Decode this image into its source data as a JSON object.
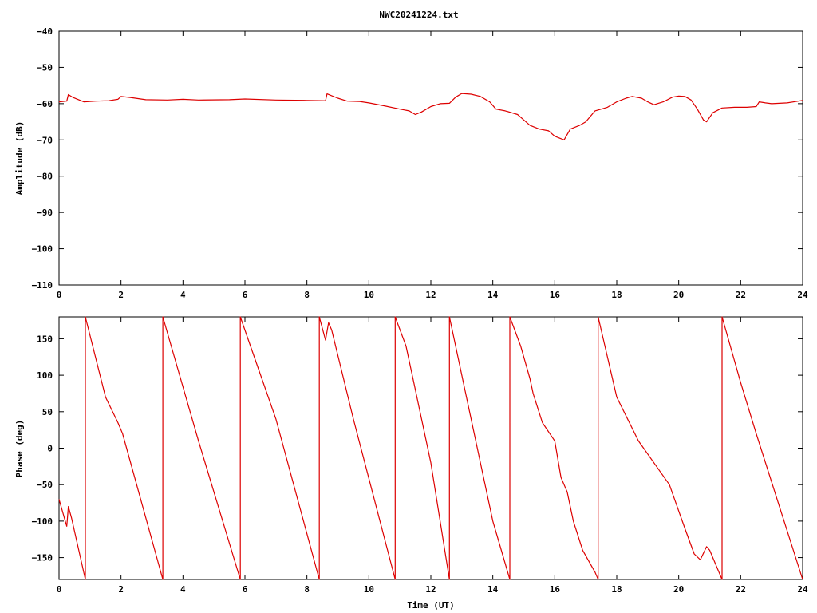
{
  "chart_data": [
    {
      "type": "line",
      "title": "NWC20241224.txt",
      "xlabel": "",
      "ylabel": "Amplitude (dB)",
      "xlim": [
        0,
        24
      ],
      "ylim": [
        -110,
        -40
      ],
      "xticks": [
        "0",
        "2",
        "4",
        "6",
        "8",
        "10",
        "12",
        "14",
        "16",
        "18",
        "20",
        "22",
        "24"
      ],
      "yticks": [
        "-40",
        "-50",
        "-60",
        "-70",
        "-80",
        "-90",
        "-100",
        "-110"
      ],
      "grid": false,
      "legend": "none",
      "color": "#dd0000",
      "series": [
        {
          "x": [
            0,
            0.25,
            0.3,
            0.45,
            0.8,
            1.2,
            1.6,
            1.9,
            2.0,
            2.3,
            2.8,
            3.5,
            4.0,
            4.5,
            5.5,
            6.0,
            7.0,
            8.0,
            8.6,
            8.65,
            8.8,
            9.0,
            9.3,
            9.7,
            10.0,
            10.5,
            11.0,
            11.3,
            11.5,
            11.7,
            12.0,
            12.3,
            12.6,
            12.8,
            13.0,
            13.3,
            13.6,
            13.9,
            14.1,
            14.4,
            14.8,
            15.0,
            15.2,
            15.5,
            15.8,
            16.0,
            16.3,
            16.5,
            16.8,
            17.0,
            17.3,
            17.7,
            18.0,
            18.3,
            18.5,
            18.8,
            19.0,
            19.2,
            19.5,
            19.8,
            20.0,
            20.2,
            20.4,
            20.6,
            20.8,
            20.9,
            21.1,
            21.4,
            21.8,
            22.2,
            22.5,
            22.6,
            22.8,
            23.0,
            23.5,
            24.0
          ],
          "y": [
            -59.5,
            -59.3,
            -57.5,
            -58.3,
            -59.5,
            -59.3,
            -59.2,
            -58.8,
            -58.0,
            -58.3,
            -58.9,
            -59.0,
            -58.8,
            -59.0,
            -58.9,
            -58.7,
            -59.0,
            -59.1,
            -59.2,
            -57.3,
            -57.8,
            -58.5,
            -59.3,
            -59.4,
            -59.8,
            -60.6,
            -61.5,
            -62.0,
            -63.0,
            -62.3,
            -60.8,
            -60.0,
            -59.9,
            -58.2,
            -57.2,
            -57.4,
            -58.0,
            -59.5,
            -61.5,
            -62.0,
            -63.0,
            -64.5,
            -66.0,
            -67.0,
            -67.5,
            -69.0,
            -70.0,
            -67.0,
            -66.0,
            -65.0,
            -62.0,
            -61.0,
            -59.5,
            -58.5,
            -58.0,
            -58.5,
            -59.5,
            -60.3,
            -59.5,
            -58.2,
            -57.9,
            -58.0,
            -59.0,
            -61.5,
            -64.5,
            -65.0,
            -62.5,
            -61.2,
            -61.0,
            -61.0,
            -60.8,
            -59.5,
            -59.8,
            -60.0,
            -59.8,
            -59.1
          ]
        }
      ]
    },
    {
      "type": "line",
      "title": "",
      "xlabel": "Time (UT)",
      "ylabel": "Phase (deg)",
      "xlim": [
        0,
        24
      ],
      "ylim": [
        -180,
        180
      ],
      "xticks": [
        "0",
        "2",
        "4",
        "6",
        "8",
        "10",
        "12",
        "14",
        "16",
        "18",
        "20",
        "22",
        "24"
      ],
      "yticks": [
        "150",
        "100",
        "50",
        "0",
        "-50",
        "-100",
        "-150"
      ],
      "ytick_values": [
        150,
        100,
        50,
        0,
        -50,
        -100,
        -150
      ],
      "grid": false,
      "legend": "none",
      "color": "#dd0000",
      "series": [
        {
          "x": [
            0,
            0.2,
            0.25,
            0.3,
            0.4,
            0.85,
            0.85,
            1.5,
            1.9,
            2.05,
            3.35,
            3.35,
            4.5,
            5.85,
            5.85,
            7.0,
            8.4,
            8.4,
            8.6,
            8.7,
            8.8,
            9.5,
            10.85,
            10.85,
            11.2,
            11.5,
            12.0,
            12.6,
            12.6,
            13.2,
            14.0,
            14.55,
            14.55,
            14.9,
            15.2,
            15.3,
            15.6,
            16.0,
            16.2,
            16.4,
            16.6,
            16.9,
            17.3,
            17.4,
            17.4,
            18.0,
            18.7,
            19.2,
            19.7,
            20.2,
            20.5,
            20.7,
            20.9,
            21.0,
            21.4,
            21.4,
            22.0,
            22.5,
            24.0
          ],
          "y": [
            -70,
            -100,
            -107,
            -80,
            -95,
            -180,
            180,
            70,
            35,
            20,
            -180,
            180,
            10,
            -180,
            180,
            40,
            -180,
            180,
            148,
            172,
            162,
            40,
            -180,
            180,
            140,
            80,
            -20,
            -180,
            180,
            60,
            -100,
            -180,
            180,
            140,
            95,
            75,
            35,
            10,
            -40,
            -60,
            -100,
            -140,
            -170,
            -180,
            180,
            70,
            10,
            -20,
            -50,
            -110,
            -145,
            -153,
            -135,
            -140,
            -180,
            180,
            90,
            20,
            -180
          ]
        }
      ]
    }
  ]
}
